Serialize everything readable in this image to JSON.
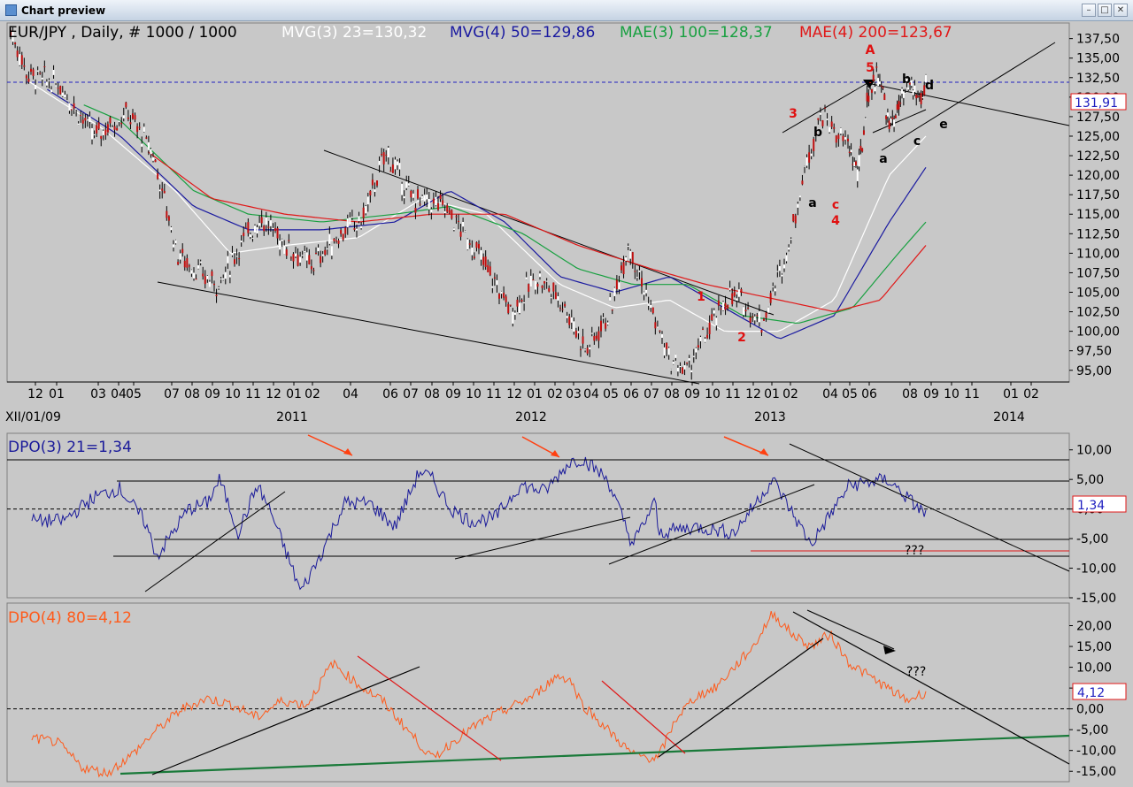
{
  "window": {
    "title": "Chart preview",
    "min_glyph": "–",
    "max_glyph": "□",
    "close_glyph": "✕"
  },
  "colors": {
    "mvg3": "#ffffff",
    "mvg4": "#1a1aa0",
    "mae3": "#18a040",
    "mae4": "#e01818",
    "dpo3": "#1a1a9a",
    "dpo4": "#ff5a1a",
    "wave": "#e01010",
    "bg": "#c8c8c8"
  },
  "chart_data": [
    {
      "type": "line",
      "panel": "price",
      "header": {
        "symbol": "EUR/JPY , Daily, # 1000 / 1000",
        "mvg3": "MVG(3) 23=130,32",
        "mvg4": "MVG(4) 50=129,86",
        "mae3": "MAE(3) 100=128,37",
        "mae4": "MAE(4) 200=123,67"
      },
      "ylim": [
        93.5,
        139.5
      ],
      "y_ticks": [
        95,
        97.5,
        100,
        102.5,
        105,
        107.5,
        110,
        112.5,
        115,
        117.5,
        120,
        122.5,
        125,
        127.5,
        130,
        132.5,
        135,
        137.5
      ],
      "y_tick_labels": [
        "95,00",
        "97,50",
        "100,00",
        "102,50",
        "105,00",
        "107,50",
        "110,00",
        "112,50",
        "115,00",
        "117,50",
        "120,00",
        "122,50",
        "125,00",
        "127,50",
        "130,00",
        "132,50",
        "135,00",
        "137,50"
      ],
      "x_month_labels": [
        "12",
        "01",
        "03",
        "04",
        "05",
        "07",
        "08",
        "09",
        "10",
        "11",
        "12",
        "01",
        "02",
        "04",
        "06",
        "07",
        "08",
        "09",
        "10",
        "11",
        "12",
        "01",
        "02",
        "03",
        "04",
        "05",
        "06",
        "07",
        "08",
        "09",
        "10",
        "11",
        "12",
        "01",
        "02",
        "04",
        "05",
        "06",
        "08",
        "09",
        "10",
        "11",
        "01",
        "02"
      ],
      "x_year_labels": [
        "XII/01/09",
        "2011",
        "2012",
        "2013",
        "2014"
      ],
      "last_value": 131.91,
      "last_value_label": "131,91",
      "price_anchors_t_value": [
        [
          0,
          138.5
        ],
        [
          0.02,
          133
        ],
        [
          0.06,
          131.5
        ],
        [
          0.1,
          125
        ],
        [
          0.14,
          128
        ],
        [
          0.17,
          123
        ],
        [
          0.2,
          110
        ],
        [
          0.23,
          107
        ],
        [
          0.25,
          106
        ],
        [
          0.28,
          112
        ],
        [
          0.3,
          114.5
        ],
        [
          0.33,
          111
        ],
        [
          0.36,
          108.5
        ],
        [
          0.4,
          113
        ],
        [
          0.42,
          114
        ],
        [
          0.45,
          123
        ],
        [
          0.48,
          117
        ],
        [
          0.52,
          116
        ],
        [
          0.56,
          110
        ],
        [
          0.6,
          102.5
        ],
        [
          0.63,
          107
        ],
        [
          0.66,
          104
        ],
        [
          0.69,
          97.5
        ],
        [
          0.72,
          103
        ],
        [
          0.74,
          111.5
        ],
        [
          0.76,
          105
        ],
        [
          0.79,
          96
        ],
        [
          0.81,
          95
        ],
        [
          0.83,
          99
        ],
        [
          0.86,
          104.5
        ],
        [
          0.88,
          103.5
        ],
        [
          0.9,
          101
        ],
        [
          0.93,
          110
        ],
        [
          0.95,
          120
        ],
        [
          0.97,
          128
        ],
        [
          1.0,
          124
        ]
      ],
      "price_anchors_t2_value": [
        [
          0,
          124
        ],
        [
          0.04,
          120
        ],
        [
          0.08,
          131
        ],
        [
          0.12,
          133
        ],
        [
          0.16,
          126
        ],
        [
          0.2,
          129
        ],
        [
          0.24,
          131.5
        ],
        [
          0.28,
          129.5
        ],
        [
          0.3,
          132
        ]
      ],
      "ma_series": [
        {
          "name": "MVG(3) 23",
          "anchors": [
            [
              0.02,
              132
            ],
            [
              0.1,
              126
            ],
            [
              0.18,
              118
            ],
            [
              0.24,
              110
            ],
            [
              0.3,
              111
            ],
            [
              0.38,
              112
            ],
            [
              0.45,
              117
            ],
            [
              0.52,
              115
            ],
            [
              0.6,
              106
            ],
            [
              0.66,
              103
            ],
            [
              0.72,
              104
            ],
            [
              0.78,
              100
            ],
            [
              0.84,
              100
            ],
            [
              0.9,
              104
            ],
            [
              0.96,
              120
            ],
            [
              1.0,
              125
            ]
          ]
        },
        {
          "name": "MVG(4) 50",
          "anchors": [
            [
              0.04,
              131
            ],
            [
              0.12,
              125
            ],
            [
              0.2,
              116
            ],
            [
              0.26,
              113
            ],
            [
              0.34,
              113
            ],
            [
              0.42,
              114
            ],
            [
              0.48,
              118
            ],
            [
              0.54,
              114
            ],
            [
              0.6,
              107
            ],
            [
              0.66,
              105
            ],
            [
              0.72,
              107
            ],
            [
              0.78,
              103
            ],
            [
              0.84,
              99
            ],
            [
              0.9,
              102
            ],
            [
              0.96,
              114
            ],
            [
              1.0,
              121
            ]
          ]
        },
        {
          "name": "MAE(3) 100",
          "anchors": [
            [
              0.08,
              129
            ],
            [
              0.12,
              127
            ],
            [
              0.2,
              118
            ],
            [
              0.26,
              115
            ],
            [
              0.34,
              114
            ],
            [
              0.42,
              115
            ],
            [
              0.48,
              116
            ],
            [
              0.56,
              112.5
            ],
            [
              0.62,
              108
            ],
            [
              0.68,
              106
            ],
            [
              0.74,
              106
            ],
            [
              0.8,
              102
            ],
            [
              0.86,
              101
            ],
            [
              0.92,
              103
            ],
            [
              0.97,
              110
            ],
            [
              1.0,
              114
            ]
          ]
        },
        {
          "name": "MAE(4) 200",
          "anchors": [
            [
              0.15,
              123
            ],
            [
              0.22,
              117
            ],
            [
              0.3,
              115
            ],
            [
              0.38,
              114
            ],
            [
              0.46,
              115
            ],
            [
              0.54,
              115
            ],
            [
              0.62,
              111
            ],
            [
              0.7,
              108
            ],
            [
              0.76,
              106
            ],
            [
              0.84,
              104
            ],
            [
              0.9,
              102.5
            ],
            [
              0.95,
              104
            ],
            [
              1.0,
              111
            ]
          ]
        }
      ],
      "annotations": [
        {
          "text": "A",
          "color": "red",
          "at": [
            12,
            139
          ]
        },
        {
          "text": "5",
          "color": "red",
          "at": [
            12,
            136.9
          ]
        },
        {
          "text": "3",
          "color": "red",
          "at": [
            8.5,
            130.3
          ]
        },
        {
          "text": "1",
          "color": "red",
          "at": [
            -18,
            105
          ]
        },
        {
          "text": "2",
          "color": "red",
          "at": [
            -14,
            98.8
          ]
        },
        {
          "text": "c",
          "color": "red",
          "at": [
            5.3,
            117.7
          ]
        },
        {
          "text": "4",
          "color": "red",
          "at": [
            5.3,
            115.2
          ]
        },
        {
          "text": "b",
          "color": "black",
          "at": [
            3.4,
            127.8
          ]
        },
        {
          "text": "a",
          "color": "black",
          "at": [
            3.1,
            117.9
          ]
        },
        {
          "text": "b",
          "color": "black",
          "at": [
            15,
            133.8
          ]
        },
        {
          "text": "d",
          "color": "black",
          "at": [
            16.1,
            133.4
          ]
        },
        {
          "text": "a",
          "color": "black",
          "at": [
            13.2,
            124.7
          ]
        },
        {
          "text": "c",
          "color": "black",
          "at": [
            15.4,
            126.3
          ]
        },
        {
          "text": "e",
          "color": "black",
          "at": [
            17.8,
            128.5
          ]
        }
      ]
    },
    {
      "type": "line",
      "panel": "oscillator",
      "title": "DPO(3) 21=1,34",
      "ylim": [
        -15,
        12.5
      ],
      "y_ticks": [
        -15,
        -10,
        -5,
        0,
        5,
        10
      ],
      "y_tick_labels": [
        "-15,00",
        "-10,00",
        "-5,00",
        "0,00",
        "5,00",
        "10,00"
      ],
      "last_value": 1.34,
      "last_value_label": "1,34",
      "note": "???",
      "anchors": [
        [
          0.05,
          -2
        ],
        [
          0.1,
          2
        ],
        [
          0.14,
          3.5
        ],
        [
          0.18,
          -2
        ],
        [
          0.2,
          -8
        ],
        [
          0.25,
          0
        ],
        [
          0.28,
          1
        ],
        [
          0.3,
          5
        ],
        [
          0.33,
          -4
        ],
        [
          0.36,
          4
        ],
        [
          0.38,
          0
        ],
        [
          0.43,
          -14
        ],
        [
          0.46,
          -8
        ],
        [
          0.5,
          1
        ],
        [
          0.54,
          1
        ],
        [
          0.58,
          -3
        ],
        [
          0.62,
          6.5
        ],
        [
          0.64,
          5
        ],
        [
          0.67,
          0
        ],
        [
          0.7,
          -2
        ],
        [
          0.74,
          -1.5
        ],
        [
          0.78,
          4
        ],
        [
          0.82,
          3
        ],
        [
          0.86,
          8
        ],
        [
          0.88,
          8.5
        ],
        [
          0.92,
          5
        ],
        [
          0.96,
          -6
        ],
        [
          1.0,
          2
        ]
      ],
      "anchors2": [
        [
          0,
          -4
        ],
        [
          0.1,
          -3
        ],
        [
          0.2,
          -4
        ],
        [
          0.3,
          5
        ],
        [
          0.4,
          -6
        ],
        [
          0.5,
          4
        ],
        [
          0.6,
          5
        ],
        [
          0.7,
          -1
        ],
        [
          0.8,
          5
        ],
        [
          0.9,
          -5
        ],
        [
          1.0,
          1
        ]
      ]
    },
    {
      "type": "line",
      "panel": "oscillator",
      "title": "DPO(4) 80=4,12",
      "ylim": [
        -17.5,
        25
      ],
      "y_ticks": [
        -15,
        -10,
        -5,
        0,
        5,
        10,
        15,
        20
      ],
      "y_tick_labels": [
        "-15,00",
        "-10,00",
        "-5,00",
        "0,00",
        "5,00",
        "10,00",
        "15,00",
        "20,00"
      ],
      "last_value": 4.12,
      "last_value_label": "4,12",
      "note": "???",
      "anchors": [
        [
          0,
          -7
        ],
        [
          0.04,
          -8
        ],
        [
          0.08,
          -14
        ],
        [
          0.12,
          -15.5
        ],
        [
          0.16,
          -11
        ],
        [
          0.2,
          -5
        ],
        [
          0.24,
          0
        ],
        [
          0.28,
          2.5
        ],
        [
          0.32,
          1
        ],
        [
          0.36,
          -2
        ],
        [
          0.4,
          2
        ],
        [
          0.44,
          1
        ],
        [
          0.48,
          11
        ],
        [
          0.52,
          6
        ],
        [
          0.56,
          2
        ],
        [
          0.6,
          -5
        ],
        [
          0.64,
          -12
        ],
        [
          0.68,
          -7
        ],
        [
          0.72,
          -3
        ],
        [
          0.76,
          0
        ],
        [
          0.8,
          3
        ],
        [
          0.84,
          8
        ],
        [
          0.86,
          7
        ],
        [
          0.88,
          1
        ],
        [
          0.92,
          -5
        ],
        [
          0.96,
          -11
        ],
        [
          1.0,
          -12
        ]
      ],
      "anchors2": [
        [
          0,
          -12
        ],
        [
          0.05,
          -2
        ],
        [
          0.1,
          3
        ],
        [
          0.15,
          5
        ],
        [
          0.2,
          10
        ],
        [
          0.25,
          15
        ],
        [
          0.3,
          23
        ],
        [
          0.35,
          18
        ],
        [
          0.4,
          15
        ],
        [
          0.45,
          18
        ],
        [
          0.5,
          11
        ],
        [
          0.55,
          8
        ],
        [
          0.6,
          5
        ],
        [
          0.65,
          2
        ],
        [
          0.7,
          4
        ]
      ]
    }
  ]
}
